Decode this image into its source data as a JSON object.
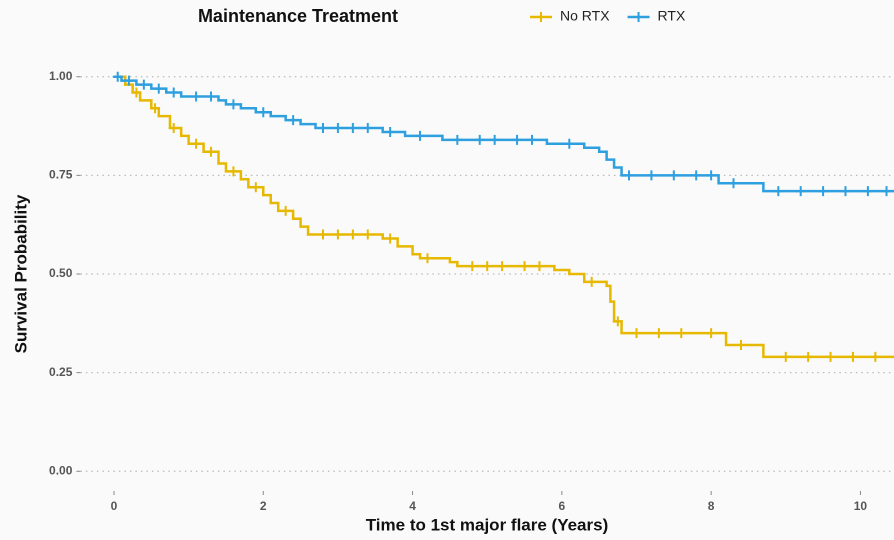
{
  "chart_data": {
    "type": "step",
    "legend_title": "Maintenance Treatment",
    "xlabel": "Time to 1st major flare (Years)",
    "ylabel": "Survival Probability",
    "xlim": [
      -0.45,
      10.45
    ],
    "xticks": [
      0,
      2,
      4,
      6,
      8,
      10
    ],
    "ylim": [
      -0.05,
      1.05
    ],
    "yticks": [
      {
        "value": 0,
        "label": "0.00"
      },
      {
        "value": 0.25,
        "label": "0.25"
      },
      {
        "value": 0.5,
        "label": "0.50"
      },
      {
        "value": 0.75,
        "label": "0.75"
      },
      {
        "value": 1,
        "label": "1.00"
      }
    ],
    "grid": true,
    "legend": "top",
    "series": [
      {
        "name": "No RTX",
        "color": "#E7B800",
        "x": [
          0,
          0.15,
          0.25,
          0.35,
          0.5,
          0.6,
          0.75,
          0.9,
          1.0,
          1.2,
          1.4,
          1.5,
          1.7,
          1.8,
          2.0,
          2.1,
          2.2,
          2.4,
          2.5,
          2.6,
          3.6,
          3.8,
          4.0,
          4.1,
          4.5,
          4.6,
          5.9,
          6.1,
          6.3,
          6.6,
          6.65,
          6.7,
          6.8,
          8.2,
          8.7
        ],
        "values": [
          1.0,
          0.98,
          0.96,
          0.94,
          0.92,
          0.9,
          0.87,
          0.85,
          0.83,
          0.81,
          0.78,
          0.76,
          0.74,
          0.72,
          0.7,
          0.68,
          0.66,
          0.64,
          0.62,
          0.6,
          0.59,
          0.57,
          0.55,
          0.54,
          0.53,
          0.52,
          0.51,
          0.5,
          0.48,
          0.47,
          0.43,
          0.38,
          0.35,
          0.32,
          0.29
        ],
        "censored": [
          0.3,
          0.55,
          0.8,
          1.1,
          1.3,
          1.6,
          1.9,
          2.3,
          2.8,
          3.0,
          3.2,
          3.4,
          3.7,
          4.2,
          4.8,
          5.0,
          5.2,
          5.5,
          5.7,
          6.4,
          6.75,
          7.0,
          7.3,
          7.6,
          8.0,
          8.4,
          9.0,
          9.3,
          9.6,
          9.9,
          10.2
        ]
      },
      {
        "name": "RTX",
        "color": "#2E9FDF",
        "x": [
          0,
          0.1,
          0.3,
          0.5,
          0.7,
          0.9,
          1.4,
          1.5,
          1.7,
          1.9,
          2.1,
          2.3,
          2.5,
          2.7,
          3.6,
          3.9,
          4.4,
          5.8,
          6.3,
          6.5,
          6.6,
          6.7,
          6.8,
          8.1,
          8.7
        ],
        "values": [
          1.0,
          0.99,
          0.98,
          0.97,
          0.96,
          0.95,
          0.94,
          0.93,
          0.92,
          0.91,
          0.9,
          0.89,
          0.88,
          0.87,
          0.86,
          0.85,
          0.84,
          0.83,
          0.82,
          0.81,
          0.79,
          0.77,
          0.75,
          0.73,
          0.71
        ],
        "censored": [
          0.05,
          0.2,
          0.4,
          0.6,
          0.8,
          1.1,
          1.3,
          1.6,
          2.0,
          2.4,
          2.8,
          3.0,
          3.2,
          3.4,
          3.7,
          4.1,
          4.6,
          4.9,
          5.1,
          5.4,
          5.6,
          6.1,
          6.9,
          7.2,
          7.5,
          7.8,
          8.0,
          8.3,
          8.9,
          9.2,
          9.5,
          9.8,
          10.1,
          10.35
        ]
      }
    ]
  }
}
